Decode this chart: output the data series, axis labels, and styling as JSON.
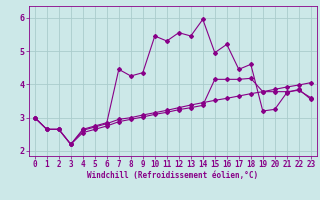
{
  "background_color": "#cce8e8",
  "line_color": "#880088",
  "xlim": [
    -0.5,
    23.5
  ],
  "ylim": [
    1.85,
    6.35
  ],
  "xticks": [
    0,
    1,
    2,
    3,
    4,
    5,
    6,
    7,
    8,
    9,
    10,
    11,
    12,
    13,
    14,
    15,
    16,
    17,
    18,
    19,
    20,
    21,
    22,
    23
  ],
  "yticks": [
    2,
    3,
    4,
    5,
    6
  ],
  "series1_x": [
    0,
    1,
    2,
    3,
    4,
    5,
    6,
    7,
    8,
    9,
    10,
    11,
    12,
    13,
    14,
    15,
    16,
    17,
    18,
    19,
    20,
    21,
    22,
    23
  ],
  "series1_y": [
    3.0,
    2.65,
    2.65,
    2.2,
    2.65,
    2.75,
    2.85,
    4.45,
    4.25,
    4.35,
    5.45,
    5.3,
    5.55,
    5.45,
    5.95,
    4.95,
    5.2,
    4.45,
    4.6,
    3.2,
    3.25,
    3.75,
    3.85,
    3.55
  ],
  "series2_x": [
    0,
    1,
    2,
    3,
    4,
    5,
    6,
    7,
    8,
    9,
    10,
    11,
    12,
    13,
    14,
    15,
    16,
    17,
    18,
    19,
    20,
    21,
    22,
    23
  ],
  "series2_y": [
    3.0,
    2.65,
    2.65,
    2.2,
    2.62,
    2.72,
    2.82,
    2.95,
    3.0,
    3.08,
    3.15,
    3.22,
    3.3,
    3.38,
    3.45,
    3.52,
    3.58,
    3.65,
    3.72,
    3.78,
    3.85,
    3.92,
    3.98,
    4.05
  ],
  "series3_x": [
    0,
    1,
    2,
    3,
    4,
    5,
    6,
    7,
    8,
    9,
    10,
    11,
    12,
    13,
    14,
    15,
    16,
    17,
    18,
    19,
    20,
    21,
    22,
    23
  ],
  "series3_y": [
    3.0,
    2.65,
    2.65,
    2.2,
    2.55,
    2.65,
    2.75,
    2.88,
    2.95,
    3.02,
    3.1,
    3.16,
    3.24,
    3.3,
    3.37,
    4.15,
    4.15,
    4.15,
    4.18,
    3.78,
    3.78,
    3.78,
    3.82,
    3.6
  ],
  "grid_color": "#aacccc",
  "marker": "D",
  "markersize": 2.0,
  "linewidth": 0.8,
  "xlabel": "Windchill (Refroidissement éolien,°C)",
  "tick_fontsize": 5.5,
  "xlabel_fontsize": 5.5
}
